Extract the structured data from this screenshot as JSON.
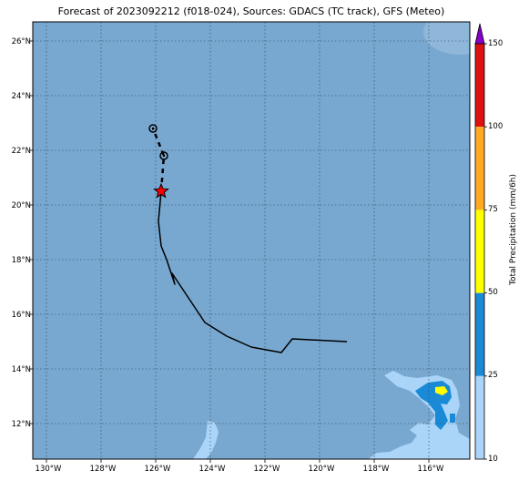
{
  "title": "Forecast of 2023092212 (f018-024), Sources: GDACS (TC track), GFS (Meteo)",
  "colors": {
    "ocean": "#78a8d0",
    "precip_10_25": "#aad4f8",
    "precip_25_50": "#1a8ad6",
    "precip_50_75": "#ffff00",
    "precip_75_100": "#ffaa22",
    "precip_100_150": "#dd1111",
    "precip_over_150": "#8800cc",
    "track": "#000000",
    "current_position_marker": "#ff0000"
  },
  "map": {
    "lat_labels": [
      "26°N",
      "24°N",
      "22°N",
      "20°N",
      "18°N",
      "16°N",
      "14°N",
      "12°N"
    ],
    "lon_labels": [
      "130°W",
      "128°W",
      "126°W",
      "124°W",
      "122°W",
      "120°W",
      "118°W",
      "116°W"
    ],
    "lat_values": [
      26,
      24,
      22,
      20,
      18,
      16,
      14,
      12
    ],
    "lon_values": [
      -130,
      -128,
      -126,
      -124,
      -122,
      -120,
      -118,
      -116
    ],
    "lon_range": [
      -130.5,
      -114.5
    ],
    "lat_range": [
      10.7,
      26.7
    ],
    "gridlines": true,
    "past_track": [
      [
        -119.0,
        15.0
      ],
      [
        -121.0,
        15.1
      ],
      [
        -121.4,
        14.6
      ],
      [
        -122.5,
        14.8
      ],
      [
        -123.4,
        15.2
      ],
      [
        -124.2,
        15.7
      ],
      [
        -125.0,
        16.9
      ],
      [
        -125.4,
        17.5
      ],
      [
        -125.3,
        17.1
      ],
      [
        -125.6,
        18.0
      ],
      [
        -125.8,
        18.5
      ],
      [
        -125.9,
        19.4
      ],
      [
        -125.8,
        20.5
      ]
    ],
    "forecast_track": [
      [
        -125.8,
        20.5
      ],
      [
        -125.7,
        21.8
      ],
      [
        -126.1,
        22.8
      ]
    ],
    "current_position": [
      -125.8,
      20.5
    ],
    "forecast_points": [
      [
        -125.7,
        21.8
      ],
      [
        -126.1,
        22.8
      ]
    ]
  },
  "colorbar": {
    "label": "Total Precipitation (mm/6h)",
    "ticks": [
      "10",
      "25",
      "50",
      "75",
      "100",
      "150"
    ]
  }
}
